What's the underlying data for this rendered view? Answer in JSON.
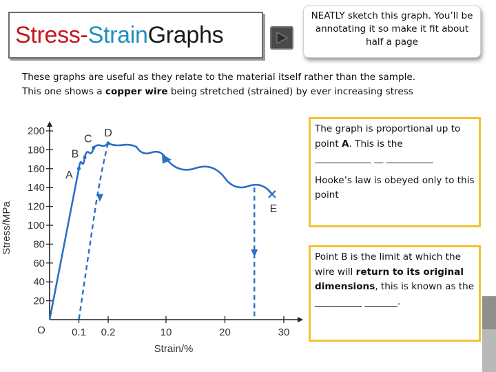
{
  "title": {
    "part1": "Stress-",
    "part2": "Strain",
    "part3": " Graphs"
  },
  "note_top": "NEATLY sketch this graph. You’ll be annotating it so make it fit about half a page",
  "intro": {
    "line1": "These graphs are useful as they relate to the material itself rather than the sample.",
    "line2_pre": "This one shows a ",
    "line2_bold": "copper wire",
    "line2_post": " being stretched  (strained) by ever increasing stress"
  },
  "box_a": {
    "line1_pre": "The graph is proportional up to point ",
    "line1_bold": "A",
    "line1_post": ". This is the",
    "blank": "____________ __ __________",
    "line2": "Hooke’s law is obeyed only to this point"
  },
  "box_b": {
    "pre": "Point B is the limit at which the wire will ",
    "bold1": "return to its original dimensions",
    "post": ", this is known as the __________ _______."
  },
  "chart_data": {
    "type": "line",
    "xlabel": "Strain/%",
    "ylabel": "Stress/MPa",
    "origin_label": "O",
    "x_ticks": [
      "0.1",
      "0.2",
      "10",
      "20",
      "30"
    ],
    "y_ticks": [
      "20",
      "40",
      "60",
      "80",
      "100",
      "120",
      "140",
      "160",
      "180",
      "200"
    ],
    "ylim": [
      0,
      200
    ],
    "points": [
      {
        "label": "A",
        "x": "0.1",
        "y": 160
      },
      {
        "label": "B",
        "x": "0.12",
        "y": 172
      },
      {
        "label": "C",
        "x": "0.15",
        "y": 182
      },
      {
        "label": "D",
        "x": "0.2",
        "y": 187
      },
      {
        "label": "E",
        "x": "28",
        "y": 133
      }
    ],
    "loading_curve": [
      {
        "x": "0",
        "y": 0
      },
      {
        "x": "0.1",
        "y": 160
      },
      {
        "x": "0.12",
        "y": 172
      },
      {
        "x": "0.15",
        "y": 182
      },
      {
        "x": "0.2",
        "y": 187
      },
      {
        "x": "5",
        "y": 183
      },
      {
        "x": "10",
        "y": 171
      },
      {
        "x": "20",
        "y": 150
      },
      {
        "x": "28",
        "y": 133
      }
    ],
    "unloading_lines": [
      {
        "from": {
          "x": "0.2",
          "y": 187
        },
        "to": {
          "x": "0.1",
          "y": 0
        }
      },
      {
        "from": {
          "x": "25",
          "y": 140
        },
        "to": {
          "x": "25",
          "y": 0
        }
      }
    ],
    "colors": {
      "curve": "#2a6fc9",
      "axes": "#222222"
    }
  }
}
